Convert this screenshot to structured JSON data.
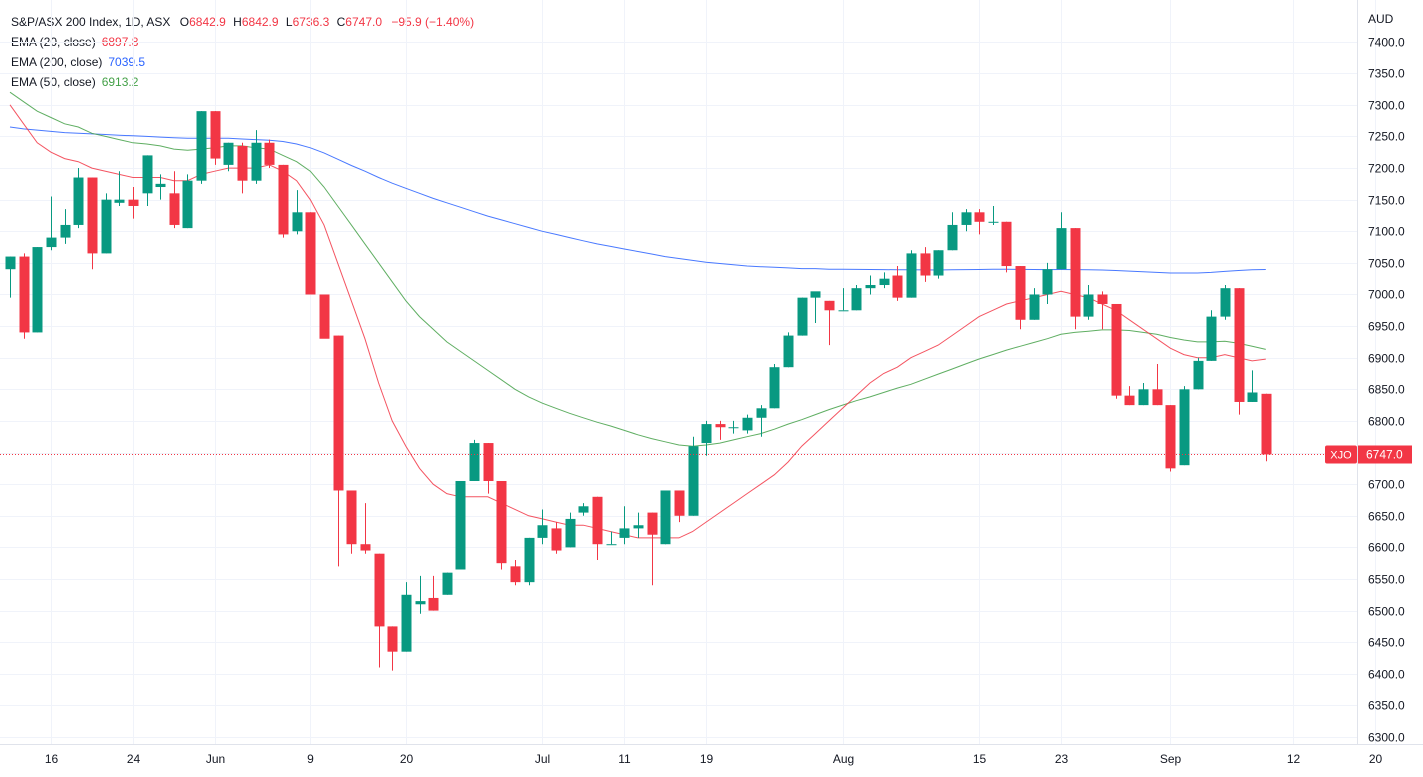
{
  "legend": {
    "symbol": "S&P/ASX 200 Index, 1D, ASX",
    "o_label": "O",
    "o_value": "6842.9",
    "h_label": "H",
    "h_value": "6842.9",
    "l_label": "L",
    "l_value": "6736.3",
    "c_label": "C",
    "c_value": "6747.0",
    "change": "−95.9 (−1.40%)",
    "ema20_label": "EMA (20, close)",
    "ema20_value": "6897.8",
    "ema200_label": "EMA (200, close)",
    "ema200_value": "7039.5",
    "ema50_label": "EMA (50, close)",
    "ema50_value": "6913.2"
  },
  "colors": {
    "up": "#089981",
    "down": "#f23645",
    "ema20": "#f23645",
    "ema200": "#2962ff",
    "ema50": "#43a047",
    "grid": "#f0f3fa",
    "text": "#131722"
  },
  "chart_data": {
    "type": "candlestick",
    "currency": "AUD",
    "ylim": [
      6270,
      7450
    ],
    "y_ticks": [
      6300,
      6350,
      6400,
      6450,
      6500,
      6550,
      6600,
      6650,
      6700,
      6750,
      6800,
      6850,
      6900,
      6950,
      7000,
      7050,
      7100,
      7150,
      7200,
      7250,
      7300,
      7350,
      7400
    ],
    "x_ticks": [
      {
        "label": "16",
        "i": 3
      },
      {
        "label": "24",
        "i": 9
      },
      {
        "label": "Jun",
        "i": 15
      },
      {
        "label": "9",
        "i": 22
      },
      {
        "label": "20",
        "i": 29
      },
      {
        "label": "Jul",
        "i": 39
      },
      {
        "label": "11",
        "i": 45
      },
      {
        "label": "19",
        "i": 51
      },
      {
        "label": "Aug",
        "i": 61
      },
      {
        "label": "15",
        "i": 71
      },
      {
        "label": "23",
        "i": 77
      },
      {
        "label": "Sep",
        "i": 85
      },
      {
        "label": "12",
        "i": 94
      },
      {
        "label": "20",
        "i": 100
      }
    ],
    "last_price_label": "XJO",
    "last_price_value": "6747.0",
    "last_price": 6747.0,
    "ohlc": [
      [
        7040,
        7060,
        6995,
        7060
      ],
      [
        7060,
        7065,
        6930,
        6940
      ],
      [
        6940,
        7075,
        6940,
        7075
      ],
      [
        7075,
        7155,
        7070,
        7090
      ],
      [
        7090,
        7135,
        7080,
        7110
      ],
      [
        7110,
        7200,
        7105,
        7185
      ],
      [
        7185,
        7185,
        7040,
        7065
      ],
      [
        7065,
        7160,
        7065,
        7150
      ],
      [
        7145,
        7195,
        7140,
        7150
      ],
      [
        7150,
        7170,
        7120,
        7140
      ],
      [
        7160,
        7220,
        7140,
        7220
      ],
      [
        7170,
        7190,
        7150,
        7175
      ],
      [
        7160,
        7195,
        7105,
        7110
      ],
      [
        7105,
        7190,
        7105,
        7180
      ],
      [
        7180,
        7290,
        7175,
        7290
      ],
      [
        7290,
        7290,
        7205,
        7215
      ],
      [
        7205,
        7240,
        7195,
        7240
      ],
      [
        7235,
        7240,
        7160,
        7180
      ],
      [
        7180,
        7260,
        7175,
        7240
      ],
      [
        7240,
        7245,
        7200,
        7205
      ],
      [
        7205,
        7205,
        7090,
        7095
      ],
      [
        7100,
        7165,
        7095,
        7130
      ],
      [
        7130,
        7130,
        7000,
        7000
      ],
      [
        7000,
        7000,
        6935,
        6930
      ],
      [
        6935,
        6935,
        6570,
        6690
      ],
      [
        6690,
        6690,
        6590,
        6605
      ],
      [
        6605,
        6670,
        6590,
        6595
      ],
      [
        6590,
        6590,
        6410,
        6475
      ],
      [
        6475,
        6475,
        6405,
        6435
      ],
      [
        6435,
        6545,
        6435,
        6525
      ],
      [
        6510,
        6555,
        6495,
        6515
      ],
      [
        6520,
        6555,
        6500,
        6500
      ],
      [
        6525,
        6560,
        6525,
        6560
      ],
      [
        6565,
        6705,
        6565,
        6705
      ],
      [
        6705,
        6770,
        6705,
        6765
      ],
      [
        6765,
        6765,
        6685,
        6705
      ],
      [
        6705,
        6705,
        6565,
        6575
      ],
      [
        6570,
        6580,
        6540,
        6545
      ],
      [
        6545,
        6615,
        6540,
        6615
      ],
      [
        6615,
        6660,
        6605,
        6635
      ],
      [
        6630,
        6640,
        6590,
        6595
      ],
      [
        6600,
        6655,
        6600,
        6645
      ],
      [
        6655,
        6670,
        6650,
        6665
      ],
      [
        6680,
        6680,
        6580,
        6605
      ],
      [
        6605,
        6625,
        6605,
        6605
      ],
      [
        6615,
        6665,
        6605,
        6630
      ],
      [
        6630,
        6655,
        6615,
        6635
      ],
      [
        6655,
        6655,
        6540,
        6620
      ],
      [
        6605,
        6690,
        6605,
        6690
      ],
      [
        6690,
        6690,
        6640,
        6650
      ],
      [
        6650,
        6775,
        6650,
        6760
      ],
      [
        6765,
        6800,
        6745,
        6795
      ],
      [
        6795,
        6800,
        6770,
        6790
      ],
      [
        6790,
        6800,
        6780,
        6790
      ],
      [
        6785,
        6810,
        6780,
        6805
      ],
      [
        6805,
        6825,
        6775,
        6820
      ],
      [
        6820,
        6890,
        6820,
        6885
      ],
      [
        6885,
        6940,
        6885,
        6935
      ],
      [
        6935,
        6995,
        6935,
        6995
      ],
      [
        6995,
        7000,
        6955,
        7005
      ],
      [
        6990,
        6990,
        6920,
        6975
      ],
      [
        6975,
        7010,
        6975,
        6975
      ],
      [
        6975,
        7015,
        6975,
        7010
      ],
      [
        7010,
        7030,
        7000,
        7015
      ],
      [
        7015,
        7035,
        7010,
        7025
      ],
      [
        7030,
        7045,
        6990,
        6995
      ],
      [
        6995,
        7070,
        6995,
        7065
      ],
      [
        7065,
        7075,
        7020,
        7030
      ],
      [
        7030,
        7070,
        7025,
        7070
      ],
      [
        7070,
        7130,
        7070,
        7110
      ],
      [
        7110,
        7135,
        7100,
        7130
      ],
      [
        7130,
        7135,
        7095,
        7115
      ],
      [
        7115,
        7140,
        7110,
        7115
      ],
      [
        7115,
        7115,
        7035,
        7045
      ],
      [
        7045,
        7045,
        6945,
        6960
      ],
      [
        6960,
        7010,
        6960,
        7000
      ],
      [
        7000,
        7050,
        6985,
        7040
      ],
      [
        7040,
        7130,
        7040,
        7105
      ],
      [
        7105,
        7105,
        6945,
        6965
      ],
      [
        6965,
        7015,
        6960,
        7000
      ],
      [
        7000,
        7005,
        6945,
        6985
      ],
      [
        6985,
        6985,
        6835,
        6840
      ],
      [
        6840,
        6855,
        6825,
        6825
      ],
      [
        6825,
        6860,
        6825,
        6850
      ],
      [
        6850,
        6890,
        6825,
        6825
      ],
      [
        6825,
        6825,
        6720,
        6725
      ],
      [
        6730,
        6855,
        6730,
        6850
      ],
      [
        6850,
        6900,
        6850,
        6895
      ],
      [
        6895,
        6975,
        6895,
        6965
      ],
      [
        6965,
        7015,
        6960,
        7010
      ],
      [
        7010,
        7010,
        6810,
        6830
      ],
      [
        6830,
        6880,
        6830,
        6845
      ],
      [
        6842.9,
        6842.9,
        6736.3,
        6747.0
      ]
    ],
    "ema20": [
      7300,
      7270,
      7240,
      7225,
      7215,
      7210,
      7200,
      7195,
      7190,
      7185,
      7185,
      7185,
      7180,
      7180,
      7190,
      7195,
      7200,
      7200,
      7200,
      7205,
      7195,
      7180,
      7150,
      7110,
      7050,
      6990,
      6930,
      6860,
      6800,
      6760,
      6725,
      6700,
      6685,
      6680,
      6680,
      6680,
      6670,
      6660,
      6650,
      6645,
      6640,
      6635,
      6635,
      6630,
      6625,
      6620,
      6615,
      6615,
      6615,
      6615,
      6625,
      6640,
      6655,
      6670,
      6685,
      6700,
      6715,
      6735,
      6760,
      6780,
      6800,
      6820,
      6840,
      6860,
      6875,
      6885,
      6900,
      6910,
      6920,
      6935,
      6950,
      6965,
      6975,
      6985,
      6990,
      6995,
      7000,
      7005,
      7000,
      6995,
      6985,
      6975,
      6960,
      6945,
      6930,
      6915,
      6905,
      6900,
      6900,
      6905,
      6900,
      6895,
      6897.8
    ],
    "ema50": [
      7320,
      7305,
      7290,
      7280,
      7270,
      7265,
      7255,
      7250,
      7245,
      7240,
      7238,
      7235,
      7230,
      7228,
      7230,
      7232,
      7235,
      7235,
      7232,
      7230,
      7220,
      7210,
      7195,
      7170,
      7140,
      7110,
      7080,
      7050,
      7020,
      6990,
      6965,
      6945,
      6925,
      6910,
      6895,
      6880,
      6865,
      6850,
      6838,
      6828,
      6820,
      6812,
      6805,
      6798,
      6792,
      6785,
      6778,
      6772,
      6767,
      6762,
      6760,
      6762,
      6765,
      6770,
      6775,
      6780,
      6787,
      6795,
      6802,
      6810,
      6818,
      6825,
      6832,
      6838,
      6845,
      6852,
      6858,
      6866,
      6874,
      6882,
      6890,
      6898,
      6905,
      6912,
      6918,
      6924,
      6930,
      6937,
      6940,
      6942,
      6944,
      6944,
      6943,
      6940,
      6937,
      6932,
      6928,
      6925,
      6925,
      6926,
      6923,
      6918,
      6913.2
    ],
    "ema200": [
      7265,
      7262,
      7260,
      7258,
      7256,
      7255,
      7254,
      7253,
      7252,
      7251,
      7250,
      7249,
      7248,
      7247,
      7247,
      7247,
      7247,
      7246,
      7245,
      7244,
      7242,
      7238,
      7232,
      7224,
      7214,
      7204,
      7195,
      7185,
      7176,
      7168,
      7160,
      7152,
      7145,
      7138,
      7131,
      7124,
      7118,
      7112,
      7106,
      7100,
      7095,
      7090,
      7085,
      7080,
      7076,
      7072,
      7068,
      7064,
      7060,
      7057,
      7054,
      7051,
      7049,
      7047,
      7045,
      7044,
      7043,
      7042,
      7041,
      7041,
      7040,
      7040,
      7039.7,
      7039.5,
      7039.3,
      7039.1,
      7039,
      7038.9,
      7038.8,
      7039,
      7039.3,
      7039.6,
      7040,
      7040,
      7039.7,
      7039.5,
      7039.3,
      7039.6,
      7039.3,
      7039,
      7038.8,
      7038,
      7037,
      7036,
      7035,
      7034,
      7034,
      7034,
      7035,
      7036.5,
      7038,
      7039,
      7039.5
    ]
  }
}
